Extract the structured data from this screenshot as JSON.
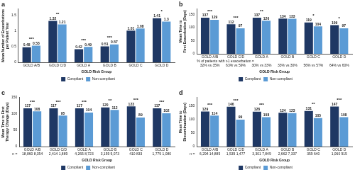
{
  "chart_data": [
    {
      "type": "bar",
      "title": "a",
      "x_label": "GOLD Risk Group",
      "y_label": "Mean Number of Exacerbations per Patient Year",
      "categories": [
        "GOLD A/B",
        "GOLD C/D",
        "GOLD A",
        "GOLD B",
        "GOLD C",
        "GOLD D"
      ],
      "series": [
        {
          "name": "Compliant",
          "color": "#1f3864",
          "values": [
            0.48,
            1.32,
            0.42,
            0.51,
            1.01,
            1.41
          ]
        },
        {
          "name": "Non-compliant",
          "color": "#5b9bd5",
          "values": [
            0.53,
            1.21,
            0.49,
            0.57,
            1.08,
            1.3
          ]
        }
      ],
      "annotations": [
        "***",
        "**",
        "***",
        "***",
        null,
        "*"
      ],
      "ylim": [
        0,
        1.7
      ],
      "yticks": [
        0,
        0.5,
        1,
        1.5
      ],
      "data_labels": true,
      "legend": "bottom",
      "grid": false
    },
    {
      "type": "bar",
      "title": "b",
      "x_label": "GOLD Risk Group",
      "y_label": "Mean Time to First Exacerbation (Days)",
      "categories": [
        "GOLD A/B",
        "GOLD C/D",
        "GOLD A",
        "GOLD B",
        "GOLD C",
        "GOLD D"
      ],
      "series": [
        {
          "name": "Compliant",
          "color": "#1f3864",
          "values": [
            137,
            112,
            137,
            134,
            119,
            109
          ]
        },
        {
          "name": "Non-compliant",
          "color": "#5b9bd5",
          "values": [
            129,
            97,
            126,
            133,
            104,
            97
          ]
        }
      ],
      "annotations": [
        "***",
        "***",
        "**",
        null,
        "*",
        "*"
      ],
      "footnote_label": "% of patients with ≥1 exacerbation =",
      "footnotes": [
        "32% vs 35%",
        "63% vs 59%",
        "30% vs 33%",
        "33% vs 30%",
        "56% vs 57%",
        "64% vs 60%"
      ],
      "ylim": [
        0,
        170
      ],
      "yticks": [
        0,
        50,
        100,
        150
      ],
      "data_labels": true,
      "legend": "bottom",
      "grid": false
    },
    {
      "type": "bar",
      "title": "c",
      "x_label": "GOLD Risk Group",
      "y_label": "Mean Time to First Therapy Change (Days)",
      "categories": [
        "GOLD A/B",
        "GOLD C/D",
        "GOLD A",
        "GOLD B",
        "GOLD C",
        "GOLD D"
      ],
      "series": [
        {
          "name": "Compliant",
          "color": "#1f3864",
          "values": [
            117,
            117,
            117,
            120,
            123,
            117
          ]
        },
        {
          "name": "Non-compliant",
          "color": "#5b9bd5",
          "values": [
            108,
            95,
            104,
            112,
            89,
            102
          ]
        }
      ],
      "annotations": [
        "***",
        "***",
        "***",
        "**",
        "***",
        "***"
      ],
      "footnote_label": "n =",
      "footnotes": [
        "18,860 8,354",
        "2,414 1,889",
        "4,265 8,723",
        "3,159 9,073",
        "410 833",
        "1,779 1,080"
      ],
      "ylim": [
        0,
        150
      ],
      "yticks": [
        0,
        50,
        100,
        150
      ],
      "data_labels": true,
      "legend": "bottom",
      "grid": false
    },
    {
      "type": "bar",
      "title": "d",
      "x_label": "GOLD Risk Group",
      "y_label": "Mean Time to Discontinuation (Days)",
      "categories": [
        "GOLD A/B",
        "GOLD C/D",
        "GOLD A",
        "GOLD B",
        "GOLD C",
        "GOLD D"
      ],
      "series": [
        {
          "name": "Compliant",
          "color": "#1f3864",
          "values": [
            129,
            146,
            128,
            124,
            131,
            147
          ]
        },
        {
          "name": "Non-compliant",
          "color": "#5b9bd5",
          "values": [
            114,
            99,
            108,
            123,
            105,
            108
          ]
        }
      ],
      "annotations": [
        "***",
        "***",
        "***",
        null,
        "**",
        "***"
      ],
      "footnote_label": "n =",
      "footnotes": [
        "6,294 14,885",
        "1,539 1,477",
        "3,301 7,849",
        "2,662 7,337",
        "359 640",
        "1,060 915"
      ],
      "ylim": [
        0,
        180
      ],
      "yticks": [
        0,
        50,
        100,
        150
      ],
      "data_labels": true,
      "legend": "bottom",
      "grid": false
    }
  ]
}
